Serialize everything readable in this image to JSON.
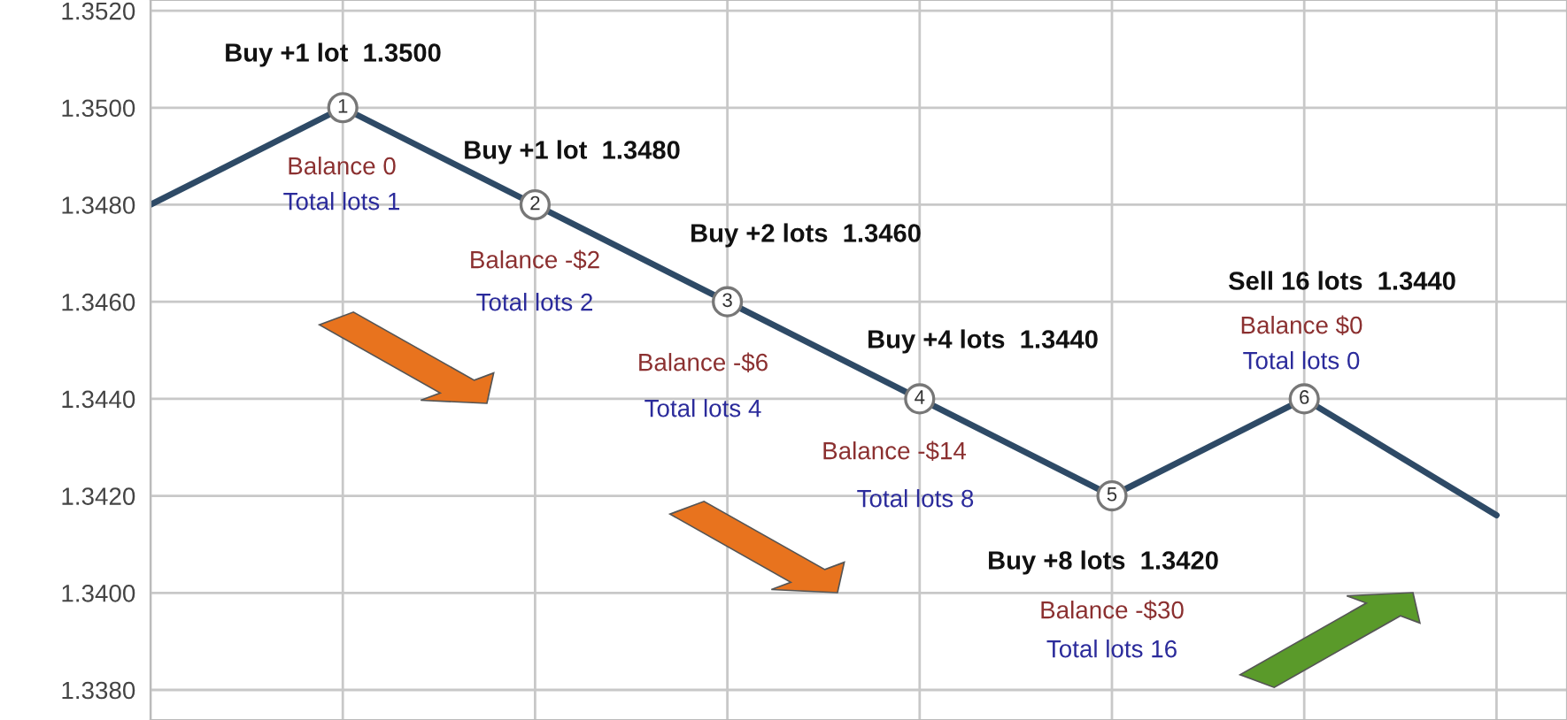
{
  "chart_data": {
    "type": "line",
    "categories": [
      null,
      null,
      null,
      null,
      null,
      null,
      null,
      null
    ],
    "series": [
      {
        "color": "#2e4a66",
        "values": [
          1.348,
          1.35,
          1.348,
          1.346,
          1.344,
          1.342,
          1.344,
          1.3416
        ]
      }
    ],
    "ylim": [
      1.33738,
      1.35222
    ],
    "yticks": [
      {
        "value": 1.338,
        "label": "1.3380"
      },
      {
        "value": 1.34,
        "label": "1.3400"
      },
      {
        "value": 1.342,
        "label": "1.3420"
      },
      {
        "value": 1.344,
        "label": "1.3440"
      },
      {
        "value": 1.346,
        "label": "1.3460"
      },
      {
        "value": 1.348,
        "label": "1.3480"
      },
      {
        "value": 1.35,
        "label": "1.3500"
      },
      {
        "value": 1.352,
        "label": "1.3520"
      }
    ],
    "tick_labels": "y",
    "grid": true,
    "line_style": "solid",
    "annotations": [
      {
        "text": "1",
        "y": 1.35
      },
      "Buy +1 lot  1.3500",
      "Balance 0",
      "Total lots 1",
      {
        "text": "2",
        "y": 1.348
      },
      "Buy +1 lot  1.3480",
      "Balance -$2",
      "Total lots 2",
      {
        "text": "3",
        "y": 1.346
      },
      "Buy +2 lots  1.3460",
      "Balance -$6",
      "Total lots 4",
      {
        "text": "4",
        "y": 1.344
      },
      "Buy +4 lots  1.3440",
      "Balance -$14",
      "Total lots 8",
      {
        "text": "5",
        "y": 1.342
      },
      "Buy +8 lots  1.3420",
      "Balance -$30",
      "Total lots 16",
      {
        "text": "6",
        "y": 1.344
      },
      "Sell 16 lots  1.3440",
      "Balance $0",
      "Total lots 0"
    ]
  }
}
